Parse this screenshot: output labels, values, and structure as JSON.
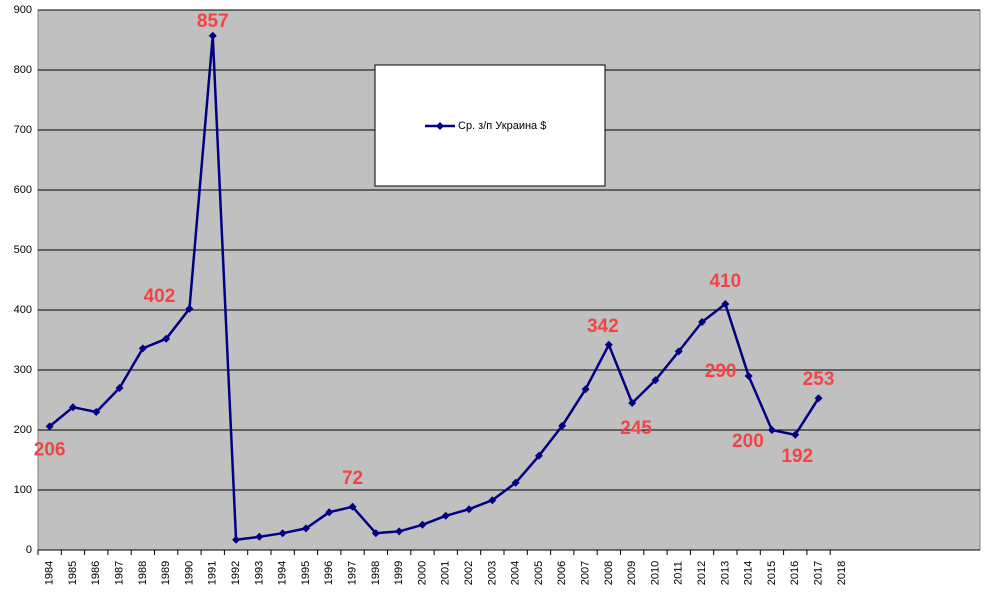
{
  "chart_data": {
    "type": "line",
    "categories": [
      "1984",
      "1985",
      "1986",
      "1987",
      "1988",
      "1989",
      "1990",
      "1991",
      "1992",
      "1993",
      "1994",
      "1995",
      "1996",
      "1997",
      "1998",
      "1999",
      "2000",
      "2001",
      "2002",
      "2003",
      "2004",
      "2005",
      "2006",
      "2007",
      "2008",
      "2009",
      "2010",
      "2011",
      "2012",
      "2013",
      "2014",
      "2015",
      "2016",
      "2017",
      "2018"
    ],
    "series": [
      {
        "name": "Ср. з/п Украина $",
        "color": "#000080",
        "values": [
          206,
          238,
          230,
          270,
          336,
          352,
          402,
          857,
          17,
          22,
          28,
          36,
          63,
          72,
          28,
          31,
          42,
          57,
          68,
          83,
          112,
          157,
          207,
          268,
          342,
          245,
          283,
          331,
          380,
          410,
          290,
          200,
          192,
          253,
          null
        ],
        "value_labels": [
          "206",
          null,
          null,
          null,
          null,
          null,
          "402",
          "857",
          null,
          null,
          null,
          null,
          null,
          "72",
          null,
          null,
          null,
          null,
          null,
          null,
          null,
          null,
          null,
          null,
          "342",
          "245",
          null,
          null,
          null,
          "410",
          "290",
          "200",
          "192",
          "253",
          null
        ]
      }
    ],
    "ylim": [
      0,
      900
    ],
    "yticks": [
      0,
      100,
      200,
      300,
      400,
      500,
      600,
      700,
      800,
      900
    ],
    "grid": true
  }
}
